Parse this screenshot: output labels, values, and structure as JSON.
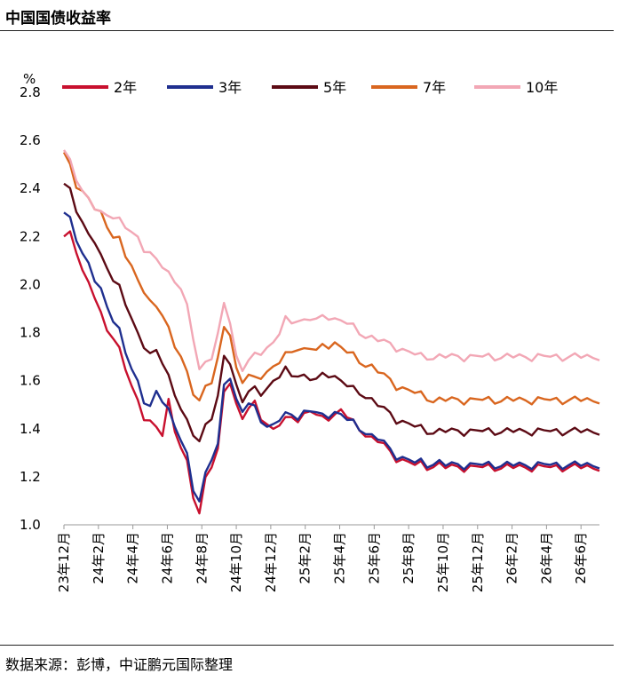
{
  "title": "中国国债收益率",
  "source": "数据来源：彭博，中证鹏元国际整理",
  "chart_data": {
    "type": "line",
    "title": "中国国债收益率",
    "ylabel": "%",
    "ylim": [
      1.0,
      2.8
    ],
    "yticks": [
      1.0,
      1.2,
      1.4,
      1.6,
      1.8,
      2.0,
      2.2,
      2.4,
      2.6,
      2.8
    ],
    "xlim": [
      0,
      43.5
    ],
    "x_tick_labels": [
      "23年12月",
      "24年2月",
      "24年4月",
      "24年6月",
      "24年8月",
      "24年10月",
      "24年12月",
      "25年2月",
      "25年4月",
      "25年6月",
      "25年8月",
      "25年10月",
      "25年12月",
      "26年2月",
      "26年4月",
      "26年6月"
    ],
    "x_tick_positions": [
      0,
      2,
      4,
      6,
      8,
      10,
      12,
      14,
      16,
      18,
      20,
      22,
      24,
      26,
      28,
      30
    ],
    "x_unit_note": "months since 23年12月",
    "grid": false,
    "legend_position": "top",
    "x": [
      0,
      0.5,
      1,
      1.5,
      2,
      2.5,
      3,
      3.5,
      4,
      4.5,
      5,
      5.5,
      6,
      6.5,
      7,
      7.5,
      8,
      8.5,
      9,
      9.5,
      10,
      10.5,
      11,
      11.5,
      12,
      12.5,
      13,
      13.5,
      14,
      14.5,
      15,
      15.5,
      16,
      16.5,
      17,
      17.5,
      18,
      18.5,
      19,
      19.5,
      20,
      20.5,
      21,
      21.5,
      22,
      22.5,
      23,
      23.5,
      24,
      24.5,
      25,
      25.5,
      26,
      26.5,
      27,
      27.5,
      28,
      28.5,
      29,
      29.5,
      30,
      30.5,
      31,
      31.5,
      32,
      32.5,
      33,
      33.5,
      34,
      34.5,
      35,
      35.5,
      36,
      36.5,
      37,
      37.5,
      38,
      38.5,
      39,
      39.5,
      40,
      40.5,
      41,
      41.5,
      42,
      42.5,
      43,
      43.5
    ],
    "series": [
      {
        "name": "2年",
        "color": "#c8102e",
        "values": [
          2.2,
          2.22,
          2.15,
          2.05,
          2.0,
          1.95,
          1.88,
          1.82,
          1.78,
          1.72,
          1.65,
          1.58,
          1.52,
          1.45,
          1.42,
          1.4,
          1.38,
          1.52,
          1.4,
          1.32,
          1.25,
          1.12,
          1.05,
          1.2,
          1.25,
          1.3,
          1.55,
          1.6,
          1.5,
          1.45,
          1.48,
          1.5,
          1.45,
          1.42,
          1.4,
          1.42,
          1.43,
          1.45,
          1.44,
          1.46,
          1.48,
          1.45,
          1.44,
          1.45,
          1.46,
          1.48,
          1.45,
          1.42,
          1.4,
          1.38,
          1.36,
          1.35,
          1.33,
          1.3,
          1.28,
          1.27,
          1.26,
          1.25,
          1.25,
          1.24,
          1.25,
          1.25,
          1.24,
          1.24,
          1.24,
          1.24,
          1.24,
          1.24,
          1.24,
          1.24,
          1.24,
          1.24,
          1.24,
          1.24,
          1.24,
          1.24,
          1.24,
          1.24,
          1.24,
          1.24,
          1.24,
          1.24,
          1.24,
          1.24,
          1.24,
          1.24,
          1.24,
          1.24
        ]
      },
      {
        "name": "3年",
        "color": "#1f2f8f",
        "values": [
          2.3,
          2.28,
          2.2,
          2.12,
          2.08,
          2.02,
          1.98,
          1.92,
          1.85,
          1.8,
          1.72,
          1.65,
          1.6,
          1.52,
          1.48,
          1.55,
          1.52,
          1.48,
          1.42,
          1.35,
          1.28,
          1.15,
          1.1,
          1.22,
          1.28,
          1.32,
          1.58,
          1.62,
          1.52,
          1.48,
          1.5,
          1.48,
          1.44,
          1.41,
          1.42,
          1.44,
          1.45,
          1.46,
          1.45,
          1.47,
          1.48,
          1.46,
          1.45,
          1.46,
          1.47,
          1.46,
          1.44,
          1.42,
          1.4,
          1.39,
          1.37,
          1.36,
          1.34,
          1.31,
          1.29,
          1.28,
          1.27,
          1.26,
          1.26,
          1.25,
          1.26,
          1.26,
          1.25,
          1.25,
          1.25,
          1.25,
          1.25,
          1.25,
          1.25,
          1.25,
          1.25,
          1.25,
          1.25,
          1.25,
          1.25,
          1.25,
          1.25,
          1.25,
          1.25,
          1.25,
          1.25,
          1.25,
          1.25,
          1.25,
          1.25,
          1.25,
          1.25,
          1.25
        ]
      },
      {
        "name": "5年",
        "color": "#5c0a14",
        "values": [
          2.42,
          2.4,
          2.32,
          2.25,
          2.2,
          2.18,
          2.12,
          2.08,
          2.02,
          1.98,
          1.92,
          1.86,
          1.8,
          1.75,
          1.7,
          1.72,
          1.68,
          1.62,
          1.55,
          1.48,
          1.42,
          1.38,
          1.35,
          1.42,
          1.45,
          1.52,
          1.7,
          1.68,
          1.58,
          1.52,
          1.55,
          1.56,
          1.55,
          1.57,
          1.6,
          1.62,
          1.64,
          1.62,
          1.63,
          1.62,
          1.61,
          1.6,
          1.62,
          1.63,
          1.62,
          1.6,
          1.58,
          1.56,
          1.55,
          1.54,
          1.52,
          1.5,
          1.48,
          1.46,
          1.44,
          1.43,
          1.42,
          1.41,
          1.4,
          1.39,
          1.39,
          1.39,
          1.39,
          1.39,
          1.39,
          1.39,
          1.39,
          1.39,
          1.39,
          1.39,
          1.39,
          1.39,
          1.39,
          1.39,
          1.39,
          1.39,
          1.39,
          1.39,
          1.39,
          1.39,
          1.39,
          1.39,
          1.39,
          1.39,
          1.39,
          1.39,
          1.39,
          1.39
        ]
      },
      {
        "name": "7年",
        "color": "#d9661f",
        "values": [
          2.55,
          2.5,
          2.42,
          2.38,
          2.35,
          2.32,
          2.3,
          2.25,
          2.2,
          2.18,
          2.12,
          2.08,
          2.02,
          1.98,
          1.92,
          1.9,
          1.88,
          1.82,
          1.75,
          1.7,
          1.62,
          1.55,
          1.52,
          1.58,
          1.6,
          1.68,
          1.82,
          1.8,
          1.65,
          1.6,
          1.62,
          1.6,
          1.62,
          1.64,
          1.66,
          1.68,
          1.7,
          1.72,
          1.74,
          1.73,
          1.74,
          1.72,
          1.74,
          1.75,
          1.76,
          1.74,
          1.72,
          1.7,
          1.68,
          1.67,
          1.66,
          1.64,
          1.62,
          1.6,
          1.58,
          1.57,
          1.56,
          1.55,
          1.54,
          1.53,
          1.52,
          1.52,
          1.52,
          1.52,
          1.52,
          1.52,
          1.52,
          1.52,
          1.52,
          1.52,
          1.52,
          1.52,
          1.52,
          1.52,
          1.52,
          1.52,
          1.52,
          1.52,
          1.52,
          1.52,
          1.52,
          1.52,
          1.52,
          1.52,
          1.52,
          1.52,
          1.52,
          1.52
        ]
      },
      {
        "name": "10年",
        "color": "#f2a7b5",
        "values": [
          2.56,
          2.52,
          2.45,
          2.38,
          2.35,
          2.32,
          2.3,
          2.3,
          2.28,
          2.26,
          2.24,
          2.22,
          2.2,
          2.15,
          2.12,
          2.1,
          2.08,
          2.05,
          2.02,
          1.98,
          1.9,
          1.78,
          1.65,
          1.68,
          1.7,
          1.78,
          1.92,
          1.85,
          1.7,
          1.65,
          1.68,
          1.7,
          1.72,
          1.74,
          1.76,
          1.8,
          1.85,
          1.84,
          1.86,
          1.85,
          1.86,
          1.85,
          1.86,
          1.87,
          1.86,
          1.85,
          1.84,
          1.82,
          1.8,
          1.79,
          1.78,
          1.77,
          1.76,
          1.75,
          1.74,
          1.73,
          1.72,
          1.71,
          1.7,
          1.7,
          1.7,
          1.7,
          1.7,
          1.7,
          1.7,
          1.7,
          1.7,
          1.7,
          1.7,
          1.7,
          1.7,
          1.7,
          1.7,
          1.7,
          1.7,
          1.7,
          1.7,
          1.7,
          1.7,
          1.7,
          1.7,
          1.7,
          1.7,
          1.7,
          1.7,
          1.7,
          1.7,
          1.7
        ]
      }
    ]
  }
}
